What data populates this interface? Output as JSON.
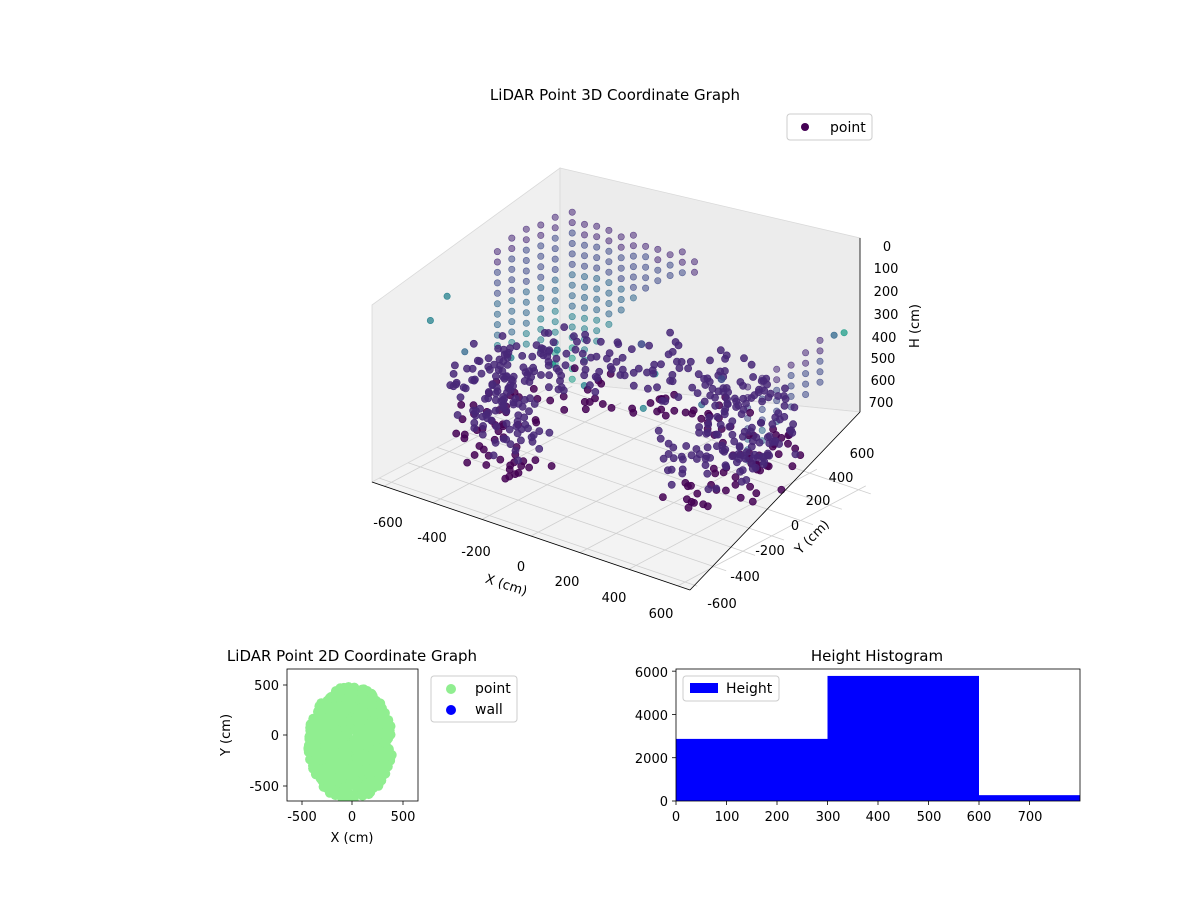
{
  "chart_data": [
    {
      "type": "scatter",
      "projection": "3d",
      "title": "LiDAR Point 3D Coordinate Graph",
      "xlabel": "X (cm)",
      "ylabel": "Y (cm)",
      "zlabel": "H (cm)",
      "xticks": [
        "-600",
        "-400",
        "-200",
        "0",
        "200",
        "400",
        "600"
      ],
      "yticks": [
        "-600",
        "-400",
        "-200",
        "0",
        "200",
        "400",
        "600"
      ],
      "zticks": [
        "0",
        "100",
        "200",
        "300",
        "400",
        "500",
        "600",
        "700"
      ],
      "xlim": [
        -650,
        650
      ],
      "ylim": [
        -650,
        650
      ],
      "zlim": [
        0,
        750
      ],
      "zaxis_inverted": true,
      "colormap": "viridis",
      "legend": [
        {
          "label": "point",
          "color": "#440154"
        }
      ],
      "legend_position": "upper-right",
      "grid": true,
      "wall_points": [
        {
          "x": -600,
          "y": 650,
          "z": 720
        },
        {
          "x": -550,
          "y": 650,
          "z": 620
        },
        {
          "x": -500,
          "y": 650,
          "z": 520
        },
        {
          "x": -450,
          "y": 650,
          "z": 430
        },
        {
          "x": -400,
          "y": 650,
          "z": 350
        },
        {
          "x": -350,
          "y": 650,
          "z": 280
        },
        {
          "x": -300,
          "y": 650,
          "z": 220
        },
        {
          "x": -250,
          "y": 650,
          "z": 170
        },
        {
          "x": -200,
          "y": 650,
          "z": 130
        },
        {
          "x": -150,
          "y": 650,
          "z": 100
        },
        {
          "x": -100,
          "y": 650,
          "z": 80
        },
        {
          "x": -640,
          "y": 600,
          "z": 650
        },
        {
          "x": -640,
          "y": 500,
          "z": 560
        },
        {
          "x": -640,
          "y": 400,
          "z": 500
        },
        {
          "x": -640,
          "y": 300,
          "z": 460
        },
        {
          "x": -640,
          "y": 200,
          "z": 440
        },
        {
          "x": 620,
          "y": -100,
          "z": 300
        },
        {
          "x": 620,
          "y": 0,
          "z": 250
        },
        {
          "x": 620,
          "y": 100,
          "z": 220
        },
        {
          "x": 620,
          "y": 200,
          "z": 200
        },
        {
          "x": 620,
          "y": -200,
          "z": 350
        },
        {
          "x": 620,
          "y": 300,
          "z": 180
        }
      ],
      "ring_points": {
        "radius_range": [
          350,
          620
        ],
        "height_range": [
          320,
          620
        ],
        "angle_range_deg": [
          -40,
          260
        ],
        "count": 520
      },
      "scattered_points": [
        {
          "x": -500,
          "y": -500,
          "z": 50
        },
        {
          "x": -300,
          "y": -600,
          "z": 80
        },
        {
          "x": -200,
          "y": -450,
          "z": 120
        },
        {
          "x": 0,
          "y": -500,
          "z": 60
        },
        {
          "x": 200,
          "y": -620,
          "z": 40
        },
        {
          "x": 400,
          "y": -550,
          "z": 90
        },
        {
          "x": 550,
          "y": -400,
          "z": 70
        },
        {
          "x": 600,
          "y": 500,
          "z": 40
        },
        {
          "x": -550,
          "y": -300,
          "z": 30
        },
        {
          "x": 300,
          "y": -300,
          "z": 60
        },
        {
          "x": -100,
          "y": -300,
          "z": 100
        },
        {
          "x": 500,
          "y": 600,
          "z": 120
        }
      ]
    },
    {
      "type": "scatter",
      "title": "LiDAR Point 2D Coordinate Graph",
      "xlabel": "X (cm)",
      "ylabel": "Y (cm)",
      "xticks": [
        "-500",
        "0",
        "500"
      ],
      "yticks": [
        "500",
        "0",
        "-500"
      ],
      "xlim": [
        -650,
        650
      ],
      "ylim": [
        -650,
        650
      ],
      "series": [
        {
          "name": "point",
          "color": "#90ee90"
        },
        {
          "name": "wall",
          "color": "#0000ff"
        }
      ],
      "point_cloud": {
        "center": [
          -20,
          -80
        ],
        "radii": [
          420,
          560
        ],
        "count": 900
      },
      "legend_position": "outside-right"
    },
    {
      "type": "bar",
      "title": "Height Histogram",
      "series": [
        {
          "name": "Height",
          "color": "#0000ff"
        }
      ],
      "bins": [
        {
          "from": 0,
          "to": 300,
          "value": 2870
        },
        {
          "from": 300,
          "to": 600,
          "value": 5780
        },
        {
          "from": 600,
          "to": 800,
          "value": 270
        }
      ],
      "xticks": [
        "0",
        "100",
        "200",
        "300",
        "400",
        "500",
        "600",
        "700"
      ],
      "yticks": [
        "0",
        "2000",
        "4000",
        "6000"
      ],
      "xlim": [
        0,
        800
      ],
      "ylim": [
        0,
        6100
      ],
      "legend_position": "upper-left"
    }
  ]
}
